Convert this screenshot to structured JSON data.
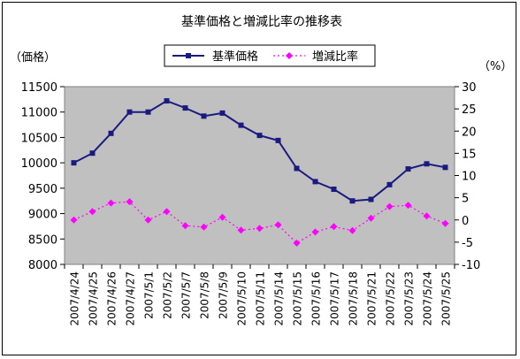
{
  "chart_data": {
    "type": "line",
    "title": "基準価格と増減比率の推移表",
    "y_left_unit": "（価格）",
    "y_right_unit": "（%）",
    "categories": [
      "2007/4/24",
      "2007/4/25",
      "2007/4/26",
      "2007/4/27",
      "2007/5/1",
      "2007/5/2",
      "2007/5/7",
      "2007/5/8",
      "2007/5/9",
      "2007/5/10",
      "2007/5/11",
      "2007/5/14",
      "2007/5/15",
      "2007/5/16",
      "2007/5/17",
      "2007/5/18",
      "2007/5/21",
      "2007/5/22",
      "2007/5/23",
      "2007/5/24",
      "2007/5/25"
    ],
    "series": [
      {
        "name": "基準価格",
        "axis": "left",
        "color": "#1a1a80",
        "marker": "square",
        "values": [
          10000,
          10190,
          10580,
          11000,
          11000,
          11220,
          11080,
          10920,
          10980,
          10740,
          10540,
          10440,
          9890,
          9630,
          9480,
          9250,
          9280,
          9570,
          9880,
          9980,
          9910
        ]
      },
      {
        "name": "増減比率",
        "axis": "right",
        "color": "#ff00ff",
        "marker": "diamond",
        "dashed": true,
        "values": [
          0,
          1.9,
          3.8,
          4.1,
          0,
          1.9,
          -1.3,
          -1.6,
          0.6,
          -2.3,
          -1.9,
          -1.1,
          -5.2,
          -2.7,
          -1.5,
          -2.4,
          0.4,
          3,
          3.3,
          0.9,
          -0.8
        ]
      }
    ],
    "ylim_left": [
      8000,
      11500
    ],
    "yticks_left": [
      "8000",
      "8500",
      "9000",
      "9500",
      "10000",
      "10500",
      "11000",
      "11500"
    ],
    "ylim_right": [
      -10,
      30
    ],
    "yticks_right": [
      "-10",
      "-5",
      "0",
      "5",
      "10",
      "15",
      "20",
      "25",
      "30"
    ],
    "plot_background": "#c0c0c0",
    "legend_position": "top-center",
    "grid": false
  }
}
